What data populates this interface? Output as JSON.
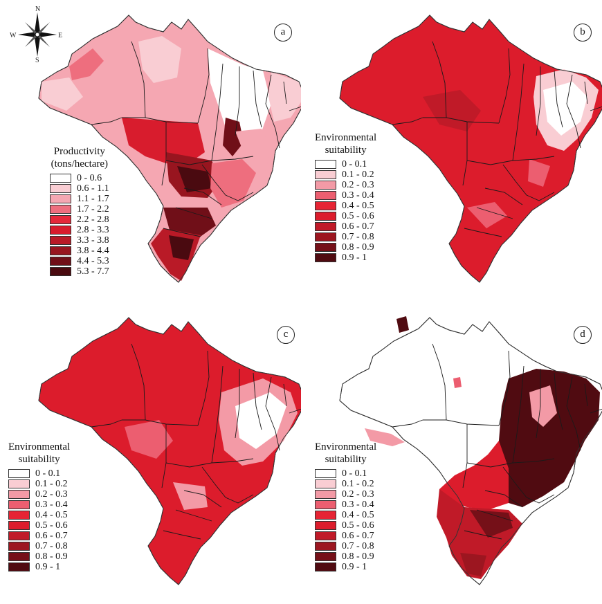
{
  "compass": {
    "north": "N",
    "south": "S",
    "east": "E",
    "west": "W"
  },
  "panels": {
    "a": {
      "letter": "a",
      "legend": {
        "title_line1": "Productivity",
        "title_line2": "(tons/hectare)",
        "classes": [
          {
            "label": "0 - 0.6",
            "color": "#ffffff"
          },
          {
            "label": "0.6 - 1.1",
            "color": "#f9cdd3"
          },
          {
            "label": "1.1 - 1.7",
            "color": "#f5a7b2"
          },
          {
            "label": "1.7 - 2.2",
            "color": "#ee6e7e"
          },
          {
            "label": "2.2 - 2.8",
            "color": "#e5283a"
          },
          {
            "label": "2.8 - 3.3",
            "color": "#d81c2d"
          },
          {
            "label": "3.3 - 3.8",
            "color": "#b91a27"
          },
          {
            "label": "3.8 - 4.4",
            "color": "#98151f"
          },
          {
            "label": "4.4 - 5.3",
            "color": "#700f18"
          },
          {
            "label": "5.3 - 7.7",
            "color": "#4a0a10"
          }
        ]
      }
    },
    "b": {
      "letter": "b",
      "legend": {
        "title_line1": "Environmental",
        "title_line2": "suitability",
        "classes": [
          {
            "label": "0 - 0.1",
            "color": "#ffffff"
          },
          {
            "label": "0.1 - 0.2",
            "color": "#f9cdd3"
          },
          {
            "label": "0.2 - 0.3",
            "color": "#f39aa6"
          },
          {
            "label": "0.3 - 0.4",
            "color": "#ec5e70"
          },
          {
            "label": "0.4 - 0.5",
            "color": "#e62434"
          },
          {
            "label": "0.5 - 0.6",
            "color": "#dc1c2c"
          },
          {
            "label": "0.6 - 0.7",
            "color": "#c01a28"
          },
          {
            "label": "0.7 - 0.8",
            "color": "#9c1620"
          },
          {
            "label": "0.8 - 0.9",
            "color": "#751018"
          },
          {
            "label": "0.9 - 1",
            "color": "#500b11"
          }
        ]
      }
    },
    "c": {
      "letter": "c",
      "legend": {
        "title_line1": "Environmental",
        "title_line2": "suitability",
        "classes": [
          {
            "label": "0 - 0.1",
            "color": "#ffffff"
          },
          {
            "label": "0.1 - 0.2",
            "color": "#f9cdd3"
          },
          {
            "label": "0.2 - 0.3",
            "color": "#f39aa6"
          },
          {
            "label": "0.3 - 0.4",
            "color": "#ec5e70"
          },
          {
            "label": "0.4 - 0.5",
            "color": "#e62434"
          },
          {
            "label": "0.5 - 0.6",
            "color": "#dc1c2c"
          },
          {
            "label": "0.6 - 0.7",
            "color": "#c01a28"
          },
          {
            "label": "0.7 - 0.8",
            "color": "#9c1620"
          },
          {
            "label": "0.8 - 0.9",
            "color": "#751018"
          },
          {
            "label": "0.9 - 1",
            "color": "#500b11"
          }
        ]
      }
    },
    "d": {
      "letter": "d",
      "legend": {
        "title_line1": "Environmental",
        "title_line2": "suitability",
        "classes": [
          {
            "label": "0 - 0.1",
            "color": "#ffffff"
          },
          {
            "label": "0.1 - 0.2",
            "color": "#f9cdd3"
          },
          {
            "label": "0.2 - 0.3",
            "color": "#f39aa6"
          },
          {
            "label": "0.3 - 0.4",
            "color": "#ec5e70"
          },
          {
            "label": "0.4 - 0.5",
            "color": "#e62434"
          },
          {
            "label": "0.5 - 0.6",
            "color": "#dc1c2c"
          },
          {
            "label": "0.6 - 0.7",
            "color": "#c01a28"
          },
          {
            "label": "0.7 - 0.8",
            "color": "#9c1620"
          },
          {
            "label": "0.8 - 0.9",
            "color": "#751018"
          },
          {
            "label": "0.9 - 1",
            "color": "#500b11"
          }
        ]
      }
    }
  }
}
